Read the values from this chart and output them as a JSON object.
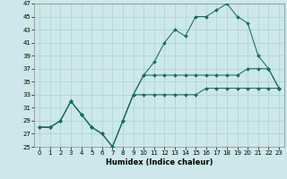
{
  "bg_color": "#cce8e8",
  "line_color": "#1a6b5a",
  "grid_color": "#aad0d0",
  "xlabel": "Humidex (Indice chaleur)",
  "ylim": [
    25,
    47
  ],
  "xlim": [
    -0.5,
    23.5
  ],
  "yticks": [
    25,
    27,
    29,
    31,
    33,
    35,
    37,
    39,
    41,
    43,
    45,
    47
  ],
  "xticks": [
    0,
    1,
    2,
    3,
    4,
    5,
    6,
    7,
    8,
    9,
    10,
    11,
    12,
    13,
    14,
    15,
    16,
    17,
    18,
    19,
    20,
    21,
    22,
    23
  ],
  "line1_x": [
    0,
    1,
    2,
    3,
    4,
    5,
    6,
    7,
    8,
    9,
    10,
    11,
    12,
    13,
    14,
    15,
    16,
    17,
    18,
    19,
    20,
    21,
    22,
    23
  ],
  "line1_y": [
    28,
    28,
    29,
    32,
    30,
    28,
    27,
    25,
    29,
    33,
    33,
    33,
    33,
    33,
    33,
    33,
    34,
    34,
    34,
    34,
    34,
    34,
    34,
    34
  ],
  "line2_x": [
    0,
    1,
    2,
    3,
    4,
    5,
    6,
    7,
    8,
    9,
    10,
    11,
    12,
    13,
    14,
    15,
    16,
    17,
    18,
    19,
    20,
    21,
    22,
    23
  ],
  "line2_y": [
    28,
    28,
    29,
    32,
    30,
    28,
    27,
    25,
    29,
    33,
    36,
    36,
    36,
    36,
    36,
    36,
    36,
    36,
    36,
    36,
    37,
    37,
    37,
    34
  ],
  "line3_x": [
    0,
    1,
    2,
    3,
    4,
    5,
    6,
    7,
    8,
    9,
    10,
    11,
    12,
    13,
    14,
    15,
    16,
    17,
    18,
    19,
    20,
    21,
    22,
    23
  ],
  "line3_y": [
    28,
    28,
    29,
    32,
    30,
    28,
    27,
    25,
    29,
    33,
    36,
    38,
    41,
    43,
    42,
    45,
    45,
    46,
    47,
    45,
    44,
    39,
    37,
    34
  ],
  "tick_fontsize": 5,
  "xlabel_fontsize": 6
}
